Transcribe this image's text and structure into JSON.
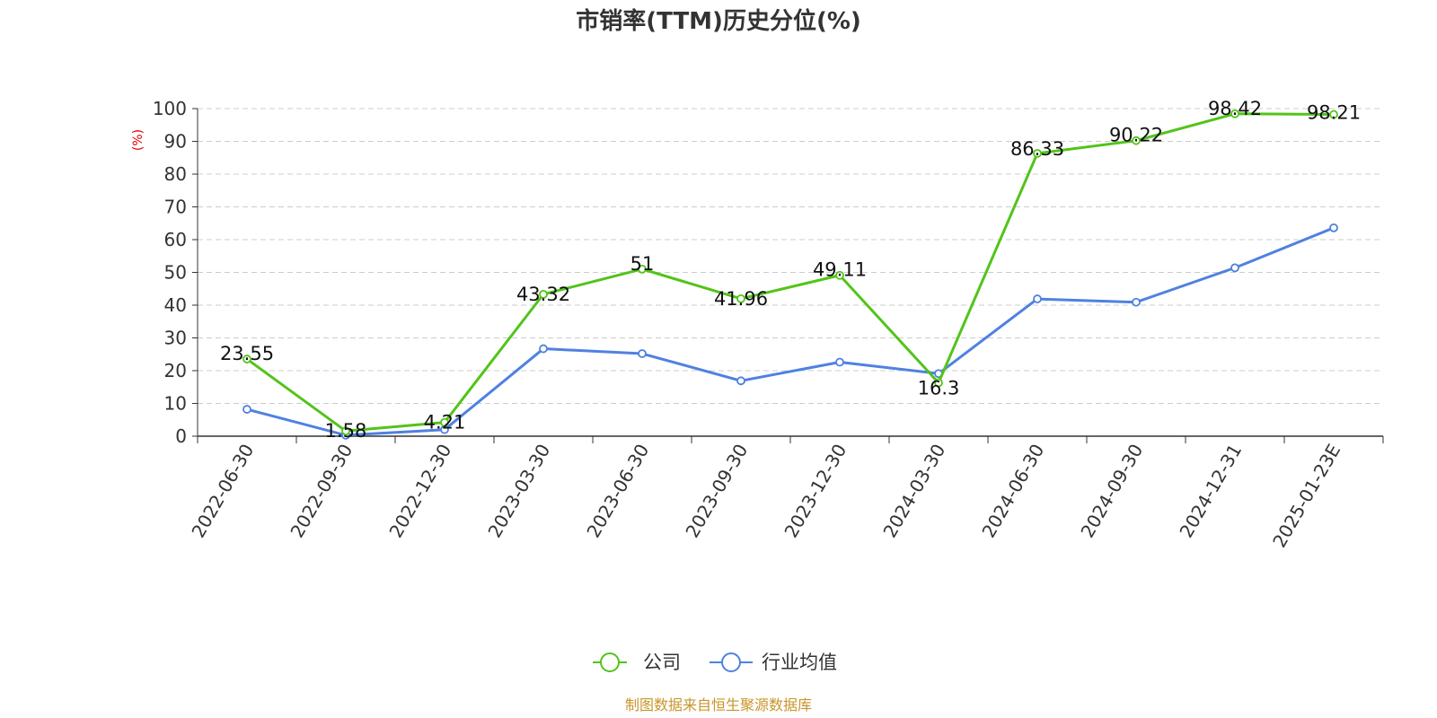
{
  "chart_data": {
    "type": "line",
    "title": "市销率(TTM)历史分位(%)",
    "xlabel": "",
    "ylabel": "(%)",
    "categories": [
      "2022-06-30",
      "2022-09-30",
      "2022-12-30",
      "2023-03-30",
      "2023-06-30",
      "2023-09-30",
      "2023-12-30",
      "2024-03-30",
      "2024-06-30",
      "2024-09-30",
      "2024-12-31",
      "2025-01-23E"
    ],
    "ylim": [
      0,
      100
    ],
    "yticks": [
      0,
      10,
      20,
      30,
      40,
      50,
      60,
      70,
      80,
      90,
      100
    ],
    "grid": true,
    "legend_position": "bottom-center",
    "series": [
      {
        "name": "公司",
        "color": "#52c41a",
        "values": [
          23.55,
          1.58,
          4.21,
          43.32,
          51,
          41.96,
          49.11,
          16.3,
          86.33,
          90.22,
          98.42,
          98.21
        ],
        "labels": [
          "23.55",
          "1.58",
          "4.21",
          "43.32",
          "51",
          "41.96",
          "49.11",
          "16.3",
          "86.33",
          "90.22",
          "98.42",
          "98.21"
        ]
      },
      {
        "name": "行业均值",
        "color": "#4f81e0",
        "values": [
          8.2,
          0.3,
          2.0,
          26.7,
          25.2,
          16.9,
          22.6,
          19.1,
          41.9,
          40.9,
          51.4,
          63.6
        ]
      }
    ]
  },
  "source_text": "制图数据来自恒生聚源数据库",
  "colors": {
    "ylabel": "#e00000",
    "source": "#c8952a",
    "grid": "#cccccc",
    "axis": "#333333"
  }
}
